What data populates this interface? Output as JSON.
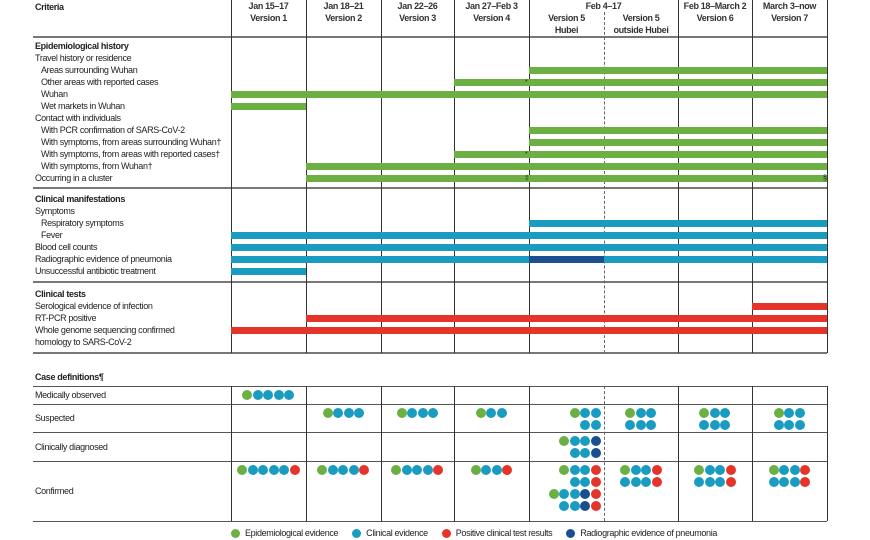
{
  "colors": {
    "epidemiological": "#6cb043",
    "clinical": "#1a9cc0",
    "test": "#e5342a",
    "radiographic": "#1c4f90"
  },
  "header": {
    "criteria": "Criteria",
    "columns": [
      {
        "date": "Jan 15–17",
        "version": "Version 1"
      },
      {
        "date": "Jan 18–21",
        "version": "Version 2"
      },
      {
        "date": "Jan 22–26",
        "version": "Version 3"
      },
      {
        "date": "Jan 27–Feb 3",
        "version": "Version 4"
      },
      {
        "date": "Feb 4–17",
        "sub": [
          {
            "version": "Version 5",
            "region": "Hubei"
          },
          {
            "version": "Version 5",
            "region": "outside Hubei"
          }
        ]
      },
      {
        "date": "Feb 18–March 2",
        "version": "Version 6"
      },
      {
        "date": "March 3–now",
        "version": "Version 7"
      }
    ]
  },
  "sections": [
    {
      "title": "Epidemiological history",
      "type": "epidemiological",
      "rows": [
        {
          "label": "Travel history or residence",
          "indent": false
        },
        {
          "label": "Areas surrounding Wuhan",
          "indent": true,
          "bars": [
            {
              "from": 4,
              "to": 8
            }
          ]
        },
        {
          "label": "Other areas with reported cases",
          "indent": true,
          "bars": [
            {
              "from": 3,
              "to": 8
            }
          ],
          "marks": [
            {
              "at": 4,
              "symbol": "*"
            }
          ]
        },
        {
          "label": "Wuhan",
          "indent": true,
          "bars": [
            {
              "from": 0,
              "to": 8
            }
          ]
        },
        {
          "label": "Wet markets in Wuhan",
          "indent": true,
          "bars": [
            {
              "from": 0,
              "to": 1
            }
          ]
        },
        {
          "label": "Contact with individuals",
          "indent": false
        },
        {
          "label": "With PCR confirmation of SARS-CoV-2",
          "indent": true,
          "bars": [
            {
              "from": 4,
              "to": 8
            }
          ]
        },
        {
          "label": "With symptoms, from areas surrounding Wuhan†",
          "indent": true,
          "bars": [
            {
              "from": 4,
              "to": 8
            }
          ]
        },
        {
          "label": "With symptoms, from areas with reported cases†",
          "indent": true,
          "bars": [
            {
              "from": 3,
              "to": 8
            }
          ],
          "marks": [
            {
              "at": 4,
              "symbol": "*"
            }
          ]
        },
        {
          "label": "With symptoms, from Wuhan†",
          "indent": true,
          "bars": [
            {
              "from": 1,
              "to": 8
            }
          ]
        },
        {
          "label": "Occurring in a cluster",
          "indent": false,
          "bars": [
            {
              "from": 1,
              "to": 8
            }
          ],
          "marks": [
            {
              "at": 4,
              "symbol": "‡"
            },
            {
              "at": 8,
              "symbol": "§"
            }
          ]
        }
      ]
    },
    {
      "title": "Clinical manifestations",
      "type": "clinical",
      "rows": [
        {
          "label": "Symptoms",
          "indent": false
        },
        {
          "label": "Respiratory symptoms",
          "indent": true,
          "bars": [
            {
              "from": 4,
              "to": 8
            }
          ]
        },
        {
          "label": "Fever",
          "indent": true,
          "bars": [
            {
              "from": 0,
              "to": 8
            }
          ]
        },
        {
          "label": "Blood cell counts",
          "indent": false,
          "bars": [
            {
              "from": 0,
              "to": 8
            }
          ]
        },
        {
          "label": "Radiographic evidence of pneumonia",
          "indent": false,
          "bars": [
            {
              "from": 0,
              "to": 4
            },
            {
              "from": 4,
              "to": 5,
              "type": "radiographic"
            },
            {
              "from": 5,
              "to": 8
            }
          ]
        },
        {
          "label": "Unsuccessful antibiotic treatment",
          "indent": false,
          "bars": [
            {
              "from": 0,
              "to": 1
            }
          ]
        }
      ]
    },
    {
      "title": "Clinical tests",
      "type": "test",
      "rows": [
        {
          "label": "Serological evidence of infection",
          "indent": false,
          "bars": [
            {
              "from": 7,
              "to": 8
            }
          ]
        },
        {
          "label": "RT-PCR positive",
          "indent": false,
          "bars": [
            {
              "from": 1,
              "to": 8
            }
          ]
        },
        {
          "label": "Whole genome sequencing confirmed",
          "indent": false,
          "bars": [
            {
              "from": 0,
              "to": 8
            }
          ]
        },
        {
          "label": "homology to SARS-CoV-2",
          "indent": false
        }
      ]
    }
  ],
  "case_definitions": {
    "title": "Case definitions¶",
    "rows": [
      {
        "label": "Medically observed",
        "cells": [
          [
            "gcccc"
          ],
          [],
          [],
          [],
          [],
          [],
          [],
          []
        ]
      },
      {
        "label": "Suspected",
        "cells": [
          [],
          [
            "gccc"
          ],
          [
            "gccc"
          ],
          [
            "gcc"
          ],
          [
            "gcc",
            "cc"
          ],
          [
            "gcc",
            "ccc"
          ],
          [
            "gcc",
            "ccc"
          ],
          [
            "gcc",
            "ccc"
          ]
        ]
      },
      {
        "label": "Clinically diagnosed",
        "cells": [
          [],
          [],
          [],
          [],
          [
            "gccd",
            "ccd"
          ],
          [],
          [],
          []
        ]
      },
      {
        "label": "Confirmed",
        "cells": [
          [
            "gccccr"
          ],
          [
            "gcccr"
          ],
          [
            "gcccr"
          ],
          [
            "gccr"
          ],
          [
            "gccr",
            "ccr",
            "gccdr",
            "ccdr"
          ],
          [
            "gccr",
            "cccr"
          ],
          [
            "gccr",
            "cccr"
          ],
          [
            "gccr",
            "cccr"
          ]
        ]
      }
    ]
  },
  "legend": [
    {
      "label": "Epidemiological evidence",
      "type": "epidemiological"
    },
    {
      "label": "Clinical evidence",
      "type": "clinical"
    },
    {
      "label": "Positive clinical test results",
      "type": "test"
    },
    {
      "label": "Radiographic evidence of pneumonia",
      "type": "radiographic"
    }
  ]
}
